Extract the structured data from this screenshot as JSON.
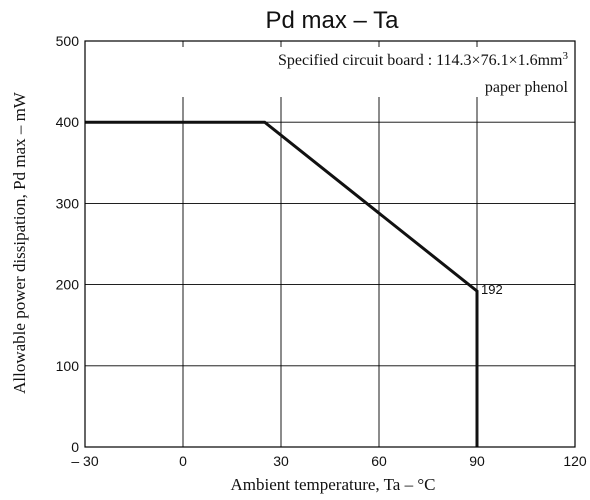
{
  "chart_data": {
    "type": "line",
    "title": "Pd max  –  Ta",
    "xlabel": "Ambient temperature, Ta  –  °C",
    "ylabel": "Allowable power dissipation, Pd max  –  mW",
    "xlim": [
      -30,
      120
    ],
    "ylim": [
      0,
      500
    ],
    "x_ticks": [
      -30,
      0,
      30,
      60,
      90,
      120
    ],
    "x_tick_labels": [
      "– 30",
      "0",
      "30",
      "60",
      "90",
      "120"
    ],
    "y_ticks": [
      0,
      100,
      200,
      300,
      400,
      500
    ],
    "y_tick_labels": [
      "0",
      "100",
      "200",
      "300",
      "400",
      "500"
    ],
    "grid": true,
    "series": [
      {
        "x": [
          -30,
          25,
          90,
          90
        ],
        "y": [
          400,
          400,
          192,
          0
        ]
      }
    ],
    "annotations": [
      {
        "text": "192",
        "x": 90,
        "y": 192
      }
    ],
    "notes": {
      "line1_prefix": "Specified circuit board : 114.3×76.1×1.6mm",
      "line1_sup": "3",
      "line2": "paper phenol"
    },
    "colors": {
      "line": "#111111",
      "grid": "#000000",
      "background": "#ffffff"
    }
  }
}
